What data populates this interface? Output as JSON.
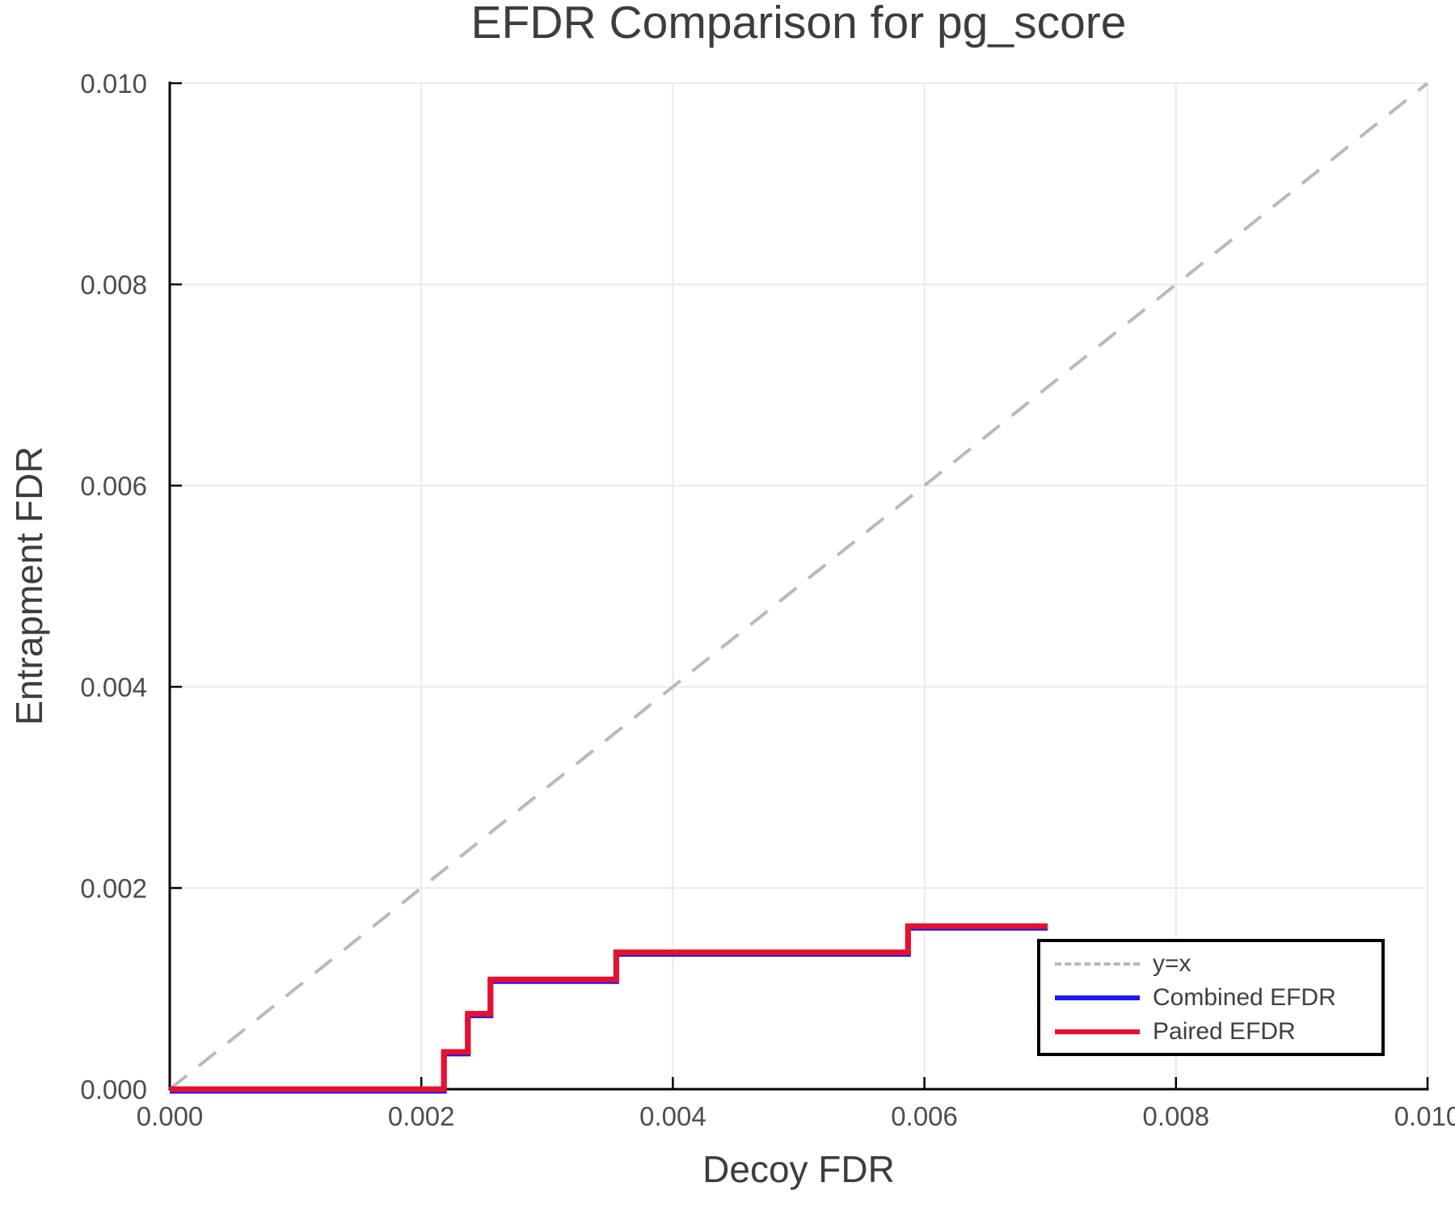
{
  "chart_data": {
    "type": "line",
    "title": "EFDR Comparison for pg_score",
    "xlabel": "Decoy FDR",
    "ylabel": "Entrapment FDR",
    "xlim": [
      0,
      0.01
    ],
    "ylim": [
      0,
      0.01
    ],
    "grid": true,
    "xticks": {
      "values": [
        0,
        0.002,
        0.004,
        0.006,
        0.008,
        0.01
      ],
      "labels": [
        "0.000",
        "0.002",
        "0.004",
        "0.006",
        "0.008",
        "0.010"
      ]
    },
    "yticks": {
      "values": [
        0,
        0.002,
        0.004,
        0.006,
        0.008,
        0.01
      ],
      "labels": [
        "0.000",
        "0.002",
        "0.004",
        "0.006",
        "0.008",
        "0.010"
      ]
    },
    "legend": {
      "position": "lower right",
      "items": [
        {
          "label": "y=x",
          "color": "#b9b9b9",
          "style": "dashed"
        },
        {
          "label": "Combined EFDR",
          "color": "#1a1aee",
          "style": "solid"
        },
        {
          "label": "Paired EFDR",
          "color": "#e8102d",
          "style": "solid"
        }
      ]
    },
    "series": [
      {
        "name": "y=x",
        "kind": "diagonal",
        "style": "dashed",
        "color": "#b9b9b9",
        "points": [
          [
            0,
            0
          ],
          [
            0.01,
            0.01
          ]
        ]
      },
      {
        "name": "Combined EFDR",
        "kind": "step",
        "style": "solid",
        "color": "#1a1aee",
        "steps": [
          [
            0,
            0
          ],
          [
            0.00218,
            0.00037
          ],
          [
            0.00237,
            0.00075
          ],
          [
            0.00255,
            0.00109
          ],
          [
            0.00355,
            0.00136
          ],
          [
            0.00587,
            0.00162
          ]
        ],
        "x_end": 0.00698
      },
      {
        "name": "Paired EFDR",
        "kind": "step",
        "style": "solid",
        "color": "#e8102d",
        "steps": [
          [
            0,
            0
          ],
          [
            0.00218,
            0.00037
          ],
          [
            0.00237,
            0.00075
          ],
          [
            0.00255,
            0.00109
          ],
          [
            0.00355,
            0.00136
          ],
          [
            0.00587,
            0.00162
          ]
        ],
        "x_end": 0.00698
      }
    ]
  }
}
